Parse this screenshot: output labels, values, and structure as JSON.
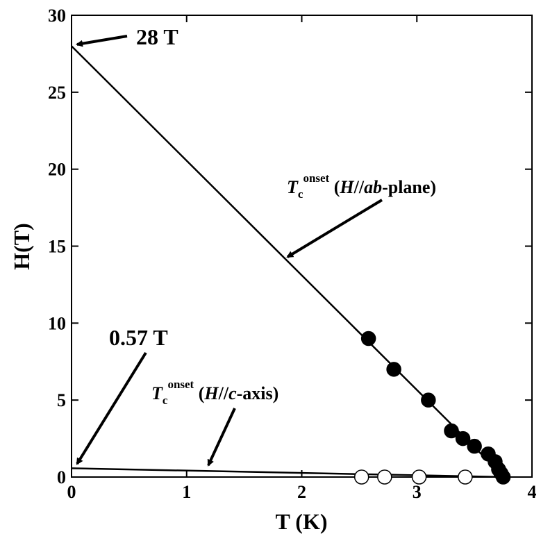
{
  "chart_data": {
    "type": "scatter",
    "xlabel": "T (K)",
    "ylabel": "H(T)",
    "xlim": [
      0,
      4
    ],
    "ylim": [
      0,
      30
    ],
    "xticks": [
      0,
      1,
      2,
      3,
      4
    ],
    "yticks": [
      0,
      5,
      10,
      15,
      20,
      25,
      30
    ],
    "grid": false,
    "series": [
      {
        "marker": "filled-circle",
        "points": [
          [
            2.58,
            9.0
          ],
          [
            2.8,
            7.0
          ],
          [
            3.1,
            5.0
          ],
          [
            3.3,
            3.0
          ],
          [
            3.4,
            2.5
          ],
          [
            3.5,
            2.0
          ],
          [
            3.62,
            1.5
          ],
          [
            3.68,
            1.0
          ],
          [
            3.71,
            0.5
          ],
          [
            3.73,
            0.25
          ],
          [
            3.75,
            0.0
          ]
        ]
      },
      {
        "marker": "open-circle",
        "points": [
          [
            2.52,
            0.0
          ],
          [
            2.72,
            0.0
          ],
          [
            3.02,
            0.0
          ],
          [
            3.42,
            0.0
          ]
        ]
      }
    ],
    "fit_lines": [
      {
        "x": [
          0,
          3.76
        ],
        "y": [
          28,
          0
        ]
      },
      {
        "x": [
          0,
          3.76
        ],
        "y": [
          0.57,
          0
        ]
      }
    ],
    "annotations": {
      "ab_intercept": "28 T",
      "c_intercept": "0.57 T",
      "ab_label": {
        "T": "T",
        "sub": "c",
        "sup": "onset",
        "open": " (",
        "H": "H",
        "slashes": "//",
        "ab": "ab",
        "rest": "-plane)"
      },
      "c_label": {
        "T": "T",
        "sub": "c",
        "sup": "onset",
        "open": " (",
        "H": "H",
        "slashes": "//",
        "c": "c",
        "rest": "-axis)"
      }
    }
  }
}
